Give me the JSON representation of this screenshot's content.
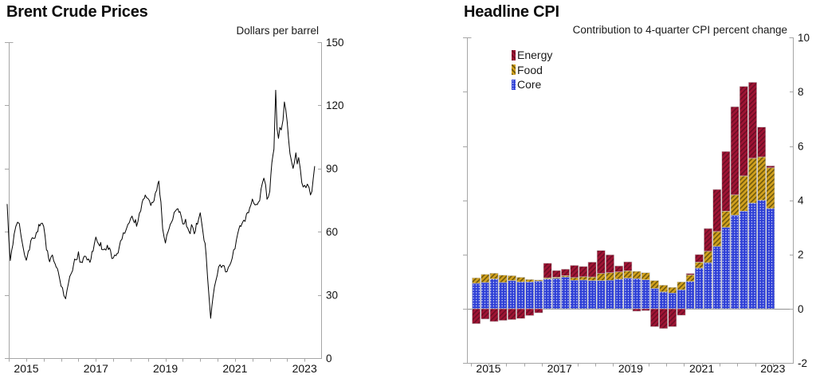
{
  "page": {
    "background_color": "#ffffff",
    "text_color": "#111111",
    "axis_color": "#a6a6a6"
  },
  "chart_data": [
    {
      "id": "brent",
      "type": "line",
      "title": "Brent Crude Prices",
      "ylabel": "Dollars per barrel",
      "line_color": "#000000",
      "xlim": [
        2014.42,
        2023.48
      ],
      "ylim": [
        0,
        150
      ],
      "grid": false,
      "y_ticks": [
        {
          "value": 0,
          "label": "0"
        },
        {
          "value": 30,
          "label": "30"
        },
        {
          "value": 60,
          "label": "60"
        },
        {
          "value": 90,
          "label": "90"
        },
        {
          "value": 120,
          "label": "120"
        },
        {
          "value": 150,
          "label": "150"
        }
      ],
      "x_ticks": [
        {
          "value": 2015,
          "label": "2015"
        },
        {
          "value": 2017,
          "label": "2017"
        },
        {
          "value": 2019,
          "label": "2019"
        },
        {
          "value": 2021,
          "label": "2021"
        },
        {
          "value": 2023,
          "label": "2023"
        }
      ],
      "minor_x_tick_interval": 0.5,
      "points": [
        [
          2014.45,
          73
        ],
        [
          2014.5,
          55
        ],
        [
          2014.54,
          46
        ],
        [
          2014.58,
          52
        ],
        [
          2014.65,
          58
        ],
        [
          2014.7,
          62
        ],
        [
          2014.75,
          66
        ],
        [
          2014.8,
          63
        ],
        [
          2014.85,
          58
        ],
        [
          2014.9,
          54
        ],
        [
          2014.95,
          50
        ],
        [
          2015.0,
          47
        ],
        [
          2015.09,
          52
        ],
        [
          2015.17,
          58
        ],
        [
          2015.25,
          56
        ],
        [
          2015.33,
          61
        ],
        [
          2015.42,
          65
        ],
        [
          2015.5,
          62
        ],
        [
          2015.58,
          52
        ],
        [
          2015.67,
          47
        ],
        [
          2015.75,
          49
        ],
        [
          2015.83,
          45
        ],
        [
          2015.92,
          40
        ],
        [
          2016.0,
          35
        ],
        [
          2016.08,
          29
        ],
        [
          2016.13,
          27
        ],
        [
          2016.17,
          33
        ],
        [
          2016.25,
          38
        ],
        [
          2016.33,
          43
        ],
        [
          2016.42,
          47
        ],
        [
          2016.5,
          49
        ],
        [
          2016.58,
          45
        ],
        [
          2016.67,
          47
        ],
        [
          2016.75,
          48
        ],
        [
          2016.83,
          46
        ],
        [
          2016.92,
          52
        ],
        [
          2017.0,
          56
        ],
        [
          2017.08,
          55
        ],
        [
          2017.17,
          53
        ],
        [
          2017.25,
          52
        ],
        [
          2017.33,
          53
        ],
        [
          2017.42,
          50
        ],
        [
          2017.5,
          47
        ],
        [
          2017.58,
          50
        ],
        [
          2017.67,
          52
        ],
        [
          2017.75,
          57
        ],
        [
          2017.83,
          60
        ],
        [
          2017.92,
          63
        ],
        [
          2018.0,
          67
        ],
        [
          2018.08,
          66
        ],
        [
          2018.17,
          64
        ],
        [
          2018.25,
          68
        ],
        [
          2018.33,
          73
        ],
        [
          2018.42,
          77
        ],
        [
          2018.5,
          75
        ],
        [
          2018.58,
          73
        ],
        [
          2018.67,
          76
        ],
        [
          2018.75,
          81
        ],
        [
          2018.81,
          85
        ],
        [
          2018.87,
          73
        ],
        [
          2018.92,
          62
        ],
        [
          2019.0,
          54
        ],
        [
          2019.08,
          61
        ],
        [
          2019.17,
          65
        ],
        [
          2019.25,
          68
        ],
        [
          2019.33,
          72
        ],
        [
          2019.42,
          70
        ],
        [
          2019.5,
          63
        ],
        [
          2019.58,
          65
        ],
        [
          2019.67,
          59
        ],
        [
          2019.75,
          62
        ],
        [
          2019.83,
          60
        ],
        [
          2019.92,
          64
        ],
        [
          2020.0,
          68
        ],
        [
          2020.08,
          60
        ],
        [
          2020.17,
          50
        ],
        [
          2020.25,
          30
        ],
        [
          2020.3,
          19
        ],
        [
          2020.37,
          30
        ],
        [
          2020.45,
          37
        ],
        [
          2020.53,
          42
        ],
        [
          2020.61,
          44
        ],
        [
          2020.69,
          43
        ],
        [
          2020.77,
          40
        ],
        [
          2020.85,
          44
        ],
        [
          2020.92,
          48
        ],
        [
          2021.0,
          52
        ],
        [
          2021.08,
          59
        ],
        [
          2021.17,
          64
        ],
        [
          2021.25,
          64
        ],
        [
          2021.33,
          67
        ],
        [
          2021.42,
          70
        ],
        [
          2021.5,
          75
        ],
        [
          2021.58,
          72
        ],
        [
          2021.67,
          73
        ],
        [
          2021.75,
          79
        ],
        [
          2021.83,
          85
        ],
        [
          2021.88,
          81
        ],
        [
          2021.92,
          76
        ],
        [
          2022.0,
          80
        ],
        [
          2022.06,
          92
        ],
        [
          2022.12,
          98
        ],
        [
          2022.17,
          128
        ],
        [
          2022.21,
          109
        ],
        [
          2022.25,
          105
        ],
        [
          2022.29,
          110
        ],
        [
          2022.33,
          108
        ],
        [
          2022.38,
          114
        ],
        [
          2022.42,
          122
        ],
        [
          2022.46,
          118
        ],
        [
          2022.5,
          112
        ],
        [
          2022.54,
          104
        ],
        [
          2022.58,
          98
        ],
        [
          2022.63,
          94
        ],
        [
          2022.67,
          90
        ],
        [
          2022.71,
          94
        ],
        [
          2022.75,
          98
        ],
        [
          2022.79,
          92
        ],
        [
          2022.83,
          95
        ],
        [
          2022.88,
          90
        ],
        [
          2022.92,
          84
        ],
        [
          2022.96,
          80
        ],
        [
          2023.0,
          83
        ],
        [
          2023.04,
          80
        ],
        [
          2023.08,
          84
        ],
        [
          2023.13,
          81
        ],
        [
          2023.17,
          76
        ],
        [
          2023.21,
          79
        ],
        [
          2023.25,
          86
        ],
        [
          2023.29,
          91
        ]
      ]
    },
    {
      "id": "cpi",
      "type": "stacked-bar",
      "title": "Headline CPI",
      "subtitle": "Contribution to 4-quarter CPI percent change",
      "legend_position": "top-left",
      "xlim": [
        2014.4,
        2023.55
      ],
      "ylim": [
        -2,
        10
      ],
      "grid": false,
      "zero_line_color": "#8f8f8f",
      "bar_outline_color": "#c9c9c9",
      "y_ticks": [
        {
          "value": -2,
          "label": "-2"
        },
        {
          "value": 0,
          "label": "0"
        },
        {
          "value": 2,
          "label": "2"
        },
        {
          "value": 4,
          "label": "4"
        },
        {
          "value": 6,
          "label": "6"
        },
        {
          "value": 8,
          "label": "8"
        },
        {
          "value": 10,
          "label": "10"
        }
      ],
      "x_ticks": [
        {
          "value": 2015,
          "label": "2015"
        },
        {
          "value": 2017,
          "label": "2017"
        },
        {
          "value": 2019,
          "label": "2019"
        },
        {
          "value": 2021,
          "label": "2021"
        },
        {
          "value": 2023,
          "label": "2023"
        }
      ],
      "minor_x_tick_interval": 0.5,
      "categories": [
        "2014Q3",
        "2014Q4",
        "2015Q1",
        "2015Q2",
        "2015Q3",
        "2015Q4",
        "2016Q1",
        "2016Q2",
        "2016Q3",
        "2016Q4",
        "2017Q1",
        "2017Q2",
        "2017Q3",
        "2017Q4",
        "2018Q1",
        "2018Q2",
        "2018Q3",
        "2018Q4",
        "2019Q1",
        "2019Q2",
        "2019Q3",
        "2019Q4",
        "2020Q1",
        "2020Q2",
        "2020Q3",
        "2020Q4",
        "2021Q1",
        "2021Q2",
        "2021Q3",
        "2021Q4",
        "2022Q1",
        "2022Q2",
        "2022Q3",
        "2022Q4"
      ],
      "series": [
        {
          "name": "Energy",
          "color": "#a01434",
          "pattern_color": "#6c0d25",
          "pattern": "hatch",
          "values": [
            -0.55,
            -0.38,
            -0.47,
            -0.43,
            -0.4,
            -0.36,
            -0.25,
            -0.15,
            0.54,
            0.25,
            0.24,
            0.45,
            0.38,
            0.55,
            0.85,
            0.66,
            0.22,
            0.33,
            -0.09,
            -0.07,
            -0.66,
            -0.73,
            -0.66,
            -0.24,
            0.05,
            0.28,
            0.84,
            1.55,
            2.2,
            3.25,
            3.3,
            2.8,
            1.1,
            0.07
          ]
        },
        {
          "name": "Food",
          "color": "#d2a11e",
          "pattern_color": "#6f590d",
          "pattern": "hatch",
          "values": [
            0.2,
            0.3,
            0.21,
            0.27,
            0.18,
            0.17,
            0.09,
            0.04,
            0.04,
            0.04,
            0.05,
            0.1,
            0.12,
            0.13,
            0.26,
            0.28,
            0.27,
            0.27,
            0.27,
            0.26,
            0.29,
            0.25,
            0.21,
            0.29,
            0.24,
            0.22,
            0.42,
            0.55,
            0.6,
            0.75,
            1.3,
            1.65,
            1.6,
            1.5
          ]
        },
        {
          "name": "Core",
          "color": "#2e3fd6",
          "pattern_color": "#ffffff",
          "pattern": "dots",
          "values": [
            0.94,
            0.97,
            1.1,
            0.97,
            1.04,
            0.99,
            0.99,
            1.02,
            1.1,
            1.12,
            1.17,
            1.05,
            1.06,
            1.04,
            1.04,
            1.05,
            1.09,
            1.13,
            1.11,
            1.07,
            0.75,
            0.62,
            0.58,
            0.7,
            1.01,
            1.5,
            1.7,
            2.3,
            3.0,
            3.45,
            3.6,
            3.9,
            4.0,
            3.7
          ]
        }
      ]
    }
  ]
}
